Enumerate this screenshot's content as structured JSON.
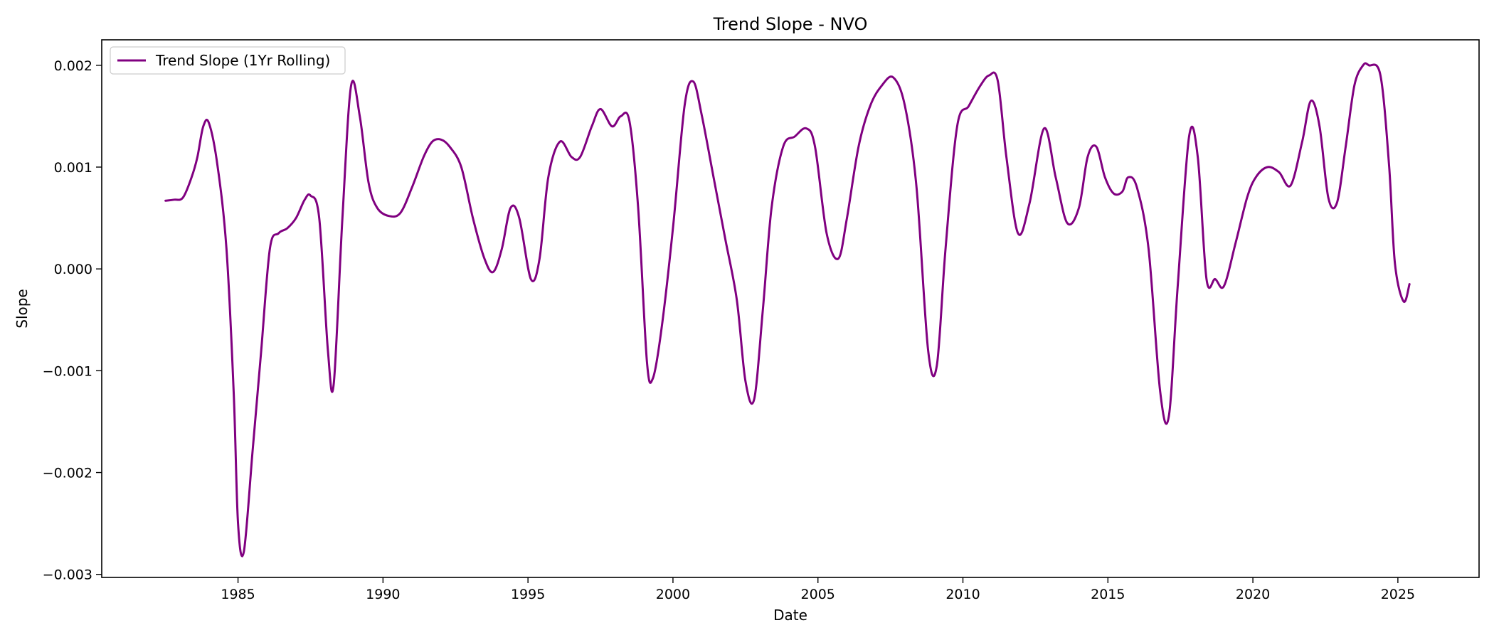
{
  "chart_data": {
    "type": "line",
    "title": "Trend Slope - NVO",
    "xlabel": "Date",
    "ylabel": "Slope",
    "xlim": [
      1980.3,
      2027.8
    ],
    "ylim": [
      -0.00303,
      0.00225
    ],
    "x_ticks": [
      1985,
      1990,
      1995,
      2000,
      2005,
      2010,
      2015,
      2020,
      2025
    ],
    "y_ticks": [
      -0.003,
      -0.002,
      -0.001,
      0.0,
      0.001,
      0.002
    ],
    "y_tick_labels": [
      "−0.003",
      "−0.002",
      "−0.001",
      "0.000",
      "0.001",
      "0.002"
    ],
    "grid": false,
    "legend_position": "top-left",
    "colors": {
      "series": "#800080",
      "axes": "#000000",
      "background": "#ffffff"
    },
    "series": [
      {
        "name": "Trend Slope (1Yr Rolling)",
        "x": [
          1982.5,
          1982.8,
          1983.1,
          1983.4,
          1983.6,
          1983.8,
          1984.0,
          1984.3,
          1984.6,
          1984.85,
          1985.0,
          1985.2,
          1985.5,
          1985.8,
          1986.1,
          1986.4,
          1986.7,
          1987.0,
          1987.3,
          1987.5,
          1987.8,
          1988.1,
          1988.3,
          1988.6,
          1988.9,
          1989.2,
          1989.5,
          1989.8,
          1990.2,
          1990.6,
          1991.0,
          1991.4,
          1991.7,
          1992.0,
          1992.3,
          1992.7,
          1993.1,
          1993.5,
          1993.8,
          1994.1,
          1994.4,
          1994.7,
          1995.1,
          1995.4,
          1995.7,
          1996.1,
          1996.5,
          1996.8,
          1997.2,
          1997.5,
          1997.9,
          1998.2,
          1998.5,
          1998.8,
          1999.1,
          1999.3,
          1999.6,
          2000.0,
          2000.4,
          2000.7,
          2001.0,
          2001.4,
          2001.8,
          2002.2,
          2002.5,
          2002.8,
          2003.1,
          2003.4,
          2003.8,
          2004.2,
          2004.6,
          2004.9,
          2005.3,
          2005.7,
          2006.0,
          2006.4,
          2006.8,
          2007.2,
          2007.6,
          2008.0,
          2008.4,
          2008.8,
          2009.1,
          2009.4,
          2009.8,
          2010.2,
          2010.6,
          2010.9,
          2011.2,
          2011.5,
          2011.9,
          2012.3,
          2012.8,
          2013.2,
          2013.6,
          2014.0,
          2014.3,
          2014.6,
          2014.9,
          2015.2,
          2015.5,
          2015.7,
          2016.0,
          2016.4,
          2016.8,
          2017.1,
          2017.4,
          2017.8,
          2018.1,
          2018.4,
          2018.7,
          2019.0,
          2019.4,
          2019.8,
          2020.1,
          2020.5,
          2020.9,
          2021.3,
          2021.7,
          2022.0,
          2022.3,
          2022.6,
          2022.9,
          2023.2,
          2023.5,
          2023.8,
          2024.0,
          2024.4,
          2024.7,
          2024.9,
          2025.2,
          2025.4
        ],
        "y": [
          0.00067,
          0.00068,
          0.0007,
          0.0009,
          0.0011,
          0.0014,
          0.00143,
          0.001,
          0.0002,
          -0.0012,
          -0.0025,
          -0.00278,
          -0.0018,
          -0.0008,
          0.0002,
          0.00035,
          0.0004,
          0.0005,
          0.00068,
          0.00072,
          0.0005,
          -0.0008,
          -0.00113,
          0.0005,
          0.0018,
          0.0015,
          0.00085,
          0.0006,
          0.00052,
          0.00055,
          0.0008,
          0.0011,
          0.00125,
          0.00127,
          0.0012,
          0.001,
          0.0005,
          0.0001,
          -3e-05,
          0.0002,
          0.0006,
          0.0005,
          -0.0001,
          0.0001,
          0.0009,
          0.00125,
          0.0011,
          0.0011,
          0.0014,
          0.00157,
          0.0014,
          0.0015,
          0.00145,
          0.0006,
          -0.0009,
          -0.00108,
          -0.0006,
          0.0004,
          0.0016,
          0.00184,
          0.0015,
          0.0009,
          0.0003,
          -0.0003,
          -0.0011,
          -0.00128,
          -0.0004,
          0.0006,
          0.0012,
          0.0013,
          0.00138,
          0.0012,
          0.00035,
          0.0001,
          0.0005,
          0.0012,
          0.0016,
          0.0018,
          0.00188,
          0.0016,
          0.0008,
          -0.0008,
          -0.00095,
          0.0002,
          0.0014,
          0.0016,
          0.0018,
          0.0019,
          0.00185,
          0.0011,
          0.00035,
          0.00065,
          0.00138,
          0.0009,
          0.00045,
          0.0006,
          0.0011,
          0.0012,
          0.0009,
          0.00074,
          0.00076,
          0.0009,
          0.0008,
          0.0002,
          -0.0012,
          -0.00145,
          -0.0002,
          0.0013,
          0.0011,
          -0.0001,
          -0.0001,
          -0.00017,
          0.00025,
          0.0007,
          0.0009,
          0.001,
          0.00095,
          0.00082,
          0.00125,
          0.00165,
          0.0014,
          0.0007,
          0.00065,
          0.0012,
          0.0018,
          0.002,
          0.002,
          0.0019,
          0.001,
          5e-05,
          -0.00032,
          -0.00015
        ]
      }
    ]
  }
}
